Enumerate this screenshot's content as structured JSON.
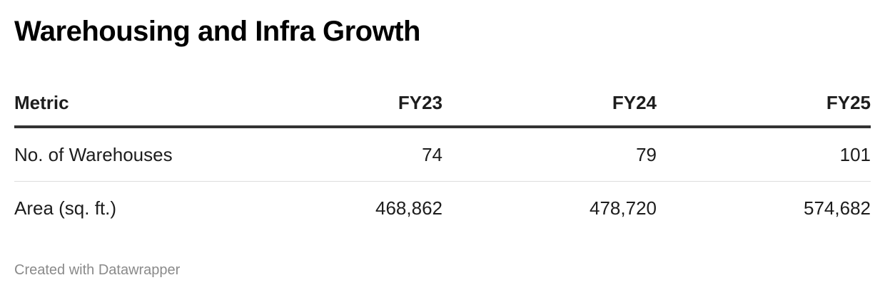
{
  "header": {
    "title": "Warehousing and Infra Growth"
  },
  "table": {
    "columns": [
      "Metric",
      "FY23",
      "FY24",
      "FY25"
    ],
    "rows": [
      [
        "No. of Warehouses",
        "74",
        "79",
        "101"
      ],
      [
        "Area (sq. ft.)",
        "468,862",
        "478,720",
        "574,682"
      ]
    ]
  },
  "footer": {
    "credit": "Created with Datawrapper"
  }
}
